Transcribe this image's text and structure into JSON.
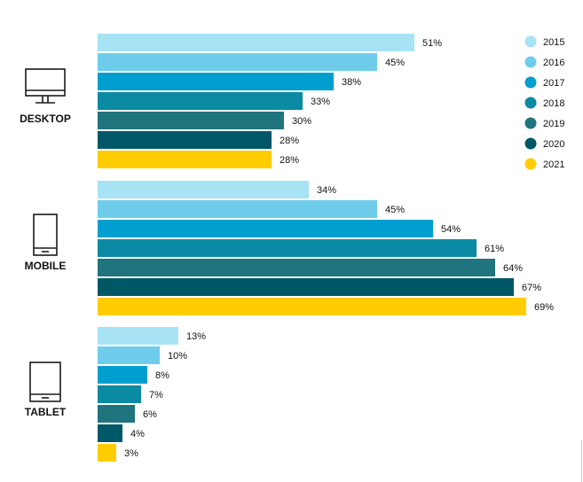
{
  "chart_data": {
    "type": "bar",
    "orientation": "horizontal",
    "title": "",
    "xlabel": "",
    "ylabel": "",
    "xlim": [
      0,
      100
    ],
    "grid": false,
    "legend_placement": "top-right",
    "value_suffix": "%",
    "categories": [
      "DESKTOP",
      "MOBILE",
      "TABLET"
    ],
    "category_icons": [
      "desktop-monitor-icon",
      "mobile-phone-icon",
      "tablet-icon"
    ],
    "series": [
      {
        "name": "2015",
        "color": "#a8e3f5",
        "values": [
          51,
          34,
          13
        ]
      },
      {
        "name": "2016",
        "color": "#6fcdeb",
        "values": [
          45,
          45,
          10
        ]
      },
      {
        "name": "2017",
        "color": "#009fcf",
        "values": [
          38,
          54,
          8
        ]
      },
      {
        "name": "2018",
        "color": "#0a8aa3",
        "values": [
          33,
          61,
          7
        ]
      },
      {
        "name": "2019",
        "color": "#1f747d",
        "values": [
          30,
          64,
          6
        ]
      },
      {
        "name": "2020",
        "color": "#005866",
        "values": [
          28,
          67,
          4
        ]
      },
      {
        "name": "2021",
        "color": "#ffcc00",
        "values": [
          28,
          69,
          3
        ]
      }
    ]
  }
}
